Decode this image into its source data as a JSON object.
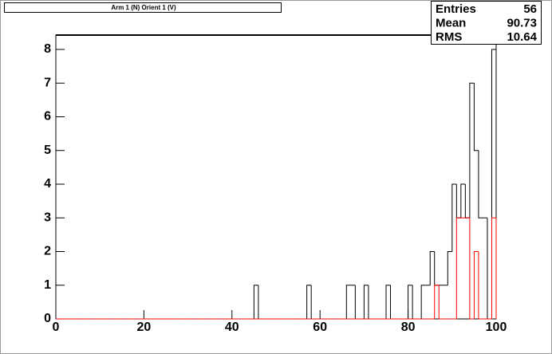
{
  "chart_data": {
    "type": "histogram",
    "title": "Arm 1 (N) Orient 1 (V)",
    "bins": [
      0,
      1,
      2,
      3,
      4,
      5,
      6,
      7,
      8,
      9,
      10,
      11,
      12,
      13,
      14,
      15,
      16,
      17,
      18,
      19,
      20,
      21,
      22,
      23,
      24,
      25,
      26,
      27,
      28,
      29,
      30,
      31,
      32,
      33,
      34,
      35,
      36,
      37,
      38,
      39,
      40,
      41,
      42,
      43,
      44,
      45,
      46,
      47,
      48,
      49,
      50,
      51,
      52,
      53,
      54,
      55,
      56,
      57,
      58,
      59,
      60,
      61,
      62,
      63,
      64,
      65,
      66,
      67,
      68,
      69,
      70,
      71,
      72,
      73,
      74,
      75,
      76,
      77,
      78,
      79,
      80,
      81,
      82,
      83,
      84,
      85,
      86,
      87,
      88,
      89,
      90,
      91,
      92,
      93,
      94,
      95,
      96,
      97,
      98,
      99,
      100
    ],
    "series": [
      {
        "color": "#000000",
        "values": [
          0,
          0,
          0,
          0,
          0,
          0,
          0,
          0,
          0,
          0,
          0,
          0,
          0,
          0,
          0,
          0,
          0,
          0,
          0,
          0,
          0,
          0,
          0,
          0,
          0,
          0,
          0,
          0,
          0,
          0,
          0,
          0,
          0,
          0,
          0,
          0,
          0,
          0,
          0,
          0,
          0,
          0,
          0,
          0,
          0,
          1,
          0,
          0,
          0,
          0,
          0,
          0,
          0,
          0,
          0,
          0,
          0,
          1,
          0,
          0,
          0,
          0,
          0,
          0,
          0,
          0,
          1,
          1,
          0,
          0,
          1,
          0,
          0,
          0,
          0,
          1,
          0,
          0,
          0,
          0,
          1,
          0,
          0,
          1,
          1,
          2,
          1,
          1,
          1,
          2,
          4,
          3,
          4,
          3,
          7,
          5,
          3,
          3,
          0,
          8
        ]
      },
      {
        "color": "#ff0000",
        "values": [
          0,
          0,
          0,
          0,
          0,
          0,
          0,
          0,
          0,
          0,
          0,
          0,
          0,
          0,
          0,
          0,
          0,
          0,
          0,
          0,
          0,
          0,
          0,
          0,
          0,
          0,
          0,
          0,
          0,
          0,
          0,
          0,
          0,
          0,
          0,
          0,
          0,
          0,
          0,
          0,
          0,
          0,
          0,
          0,
          0,
          0,
          0,
          0,
          0,
          0,
          0,
          0,
          0,
          0,
          0,
          0,
          0,
          0,
          0,
          0,
          0,
          0,
          0,
          0,
          0,
          0,
          0,
          0,
          0,
          0,
          0,
          0,
          0,
          0,
          0,
          0,
          0,
          0,
          0,
          0,
          0,
          0,
          0,
          0,
          0,
          0,
          1,
          0,
          0,
          0,
          0,
          3,
          3,
          3,
          0,
          2,
          0,
          0,
          0,
          3
        ]
      }
    ],
    "xlim": [
      0,
      100
    ],
    "xticks": [
      0,
      20,
      40,
      60,
      80,
      100
    ],
    "ylim": [
      0,
      8
    ],
    "yticks": [
      0,
      1,
      2,
      3,
      4,
      5,
      6,
      7,
      8
    ],
    "stats": [
      {
        "label": "Entries",
        "value": 56
      },
      {
        "label": "Mean",
        "value": 90.73
      },
      {
        "label": "RMS",
        "value": 10.64
      }
    ]
  }
}
